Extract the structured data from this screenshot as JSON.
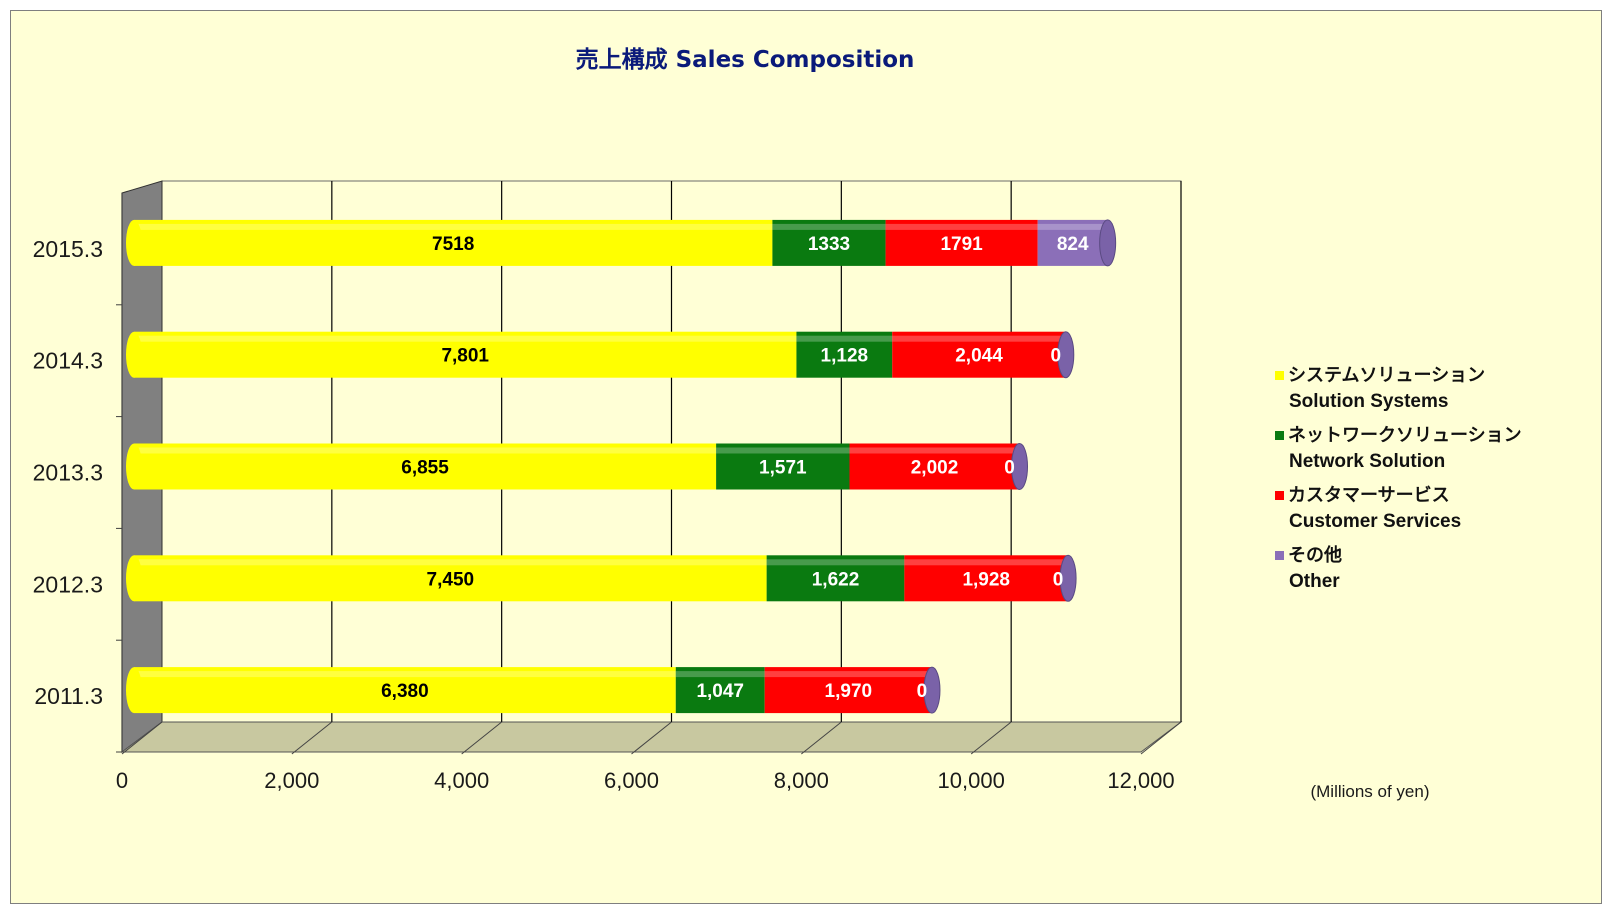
{
  "chart_data": {
    "type": "bar",
    "orientation": "horizontal",
    "stacked": true,
    "title": "売上構成  Sales Composition",
    "unit_note": "(Millions of yen)",
    "xlim": [
      0,
      12000
    ],
    "x_ticks": [
      "0",
      "2,000",
      "4,000",
      "6,000",
      "8,000",
      "10,000",
      "12,000"
    ],
    "x_tick_values": [
      0,
      2000,
      4000,
      6000,
      8000,
      10000,
      12000
    ],
    "grid": true,
    "legend_position": "right",
    "categories": [
      "2011.3",
      "2012.3",
      "2013.3",
      "2014.3",
      "2015.3"
    ],
    "series": [
      {
        "name": "システムソリューション",
        "name_en": "Solution Systems",
        "color": "#ffff00",
        "text_color": "#000000",
        "values": [
          6380,
          7450,
          6855,
          7801,
          7518
        ],
        "labels": [
          "6,380",
          "7,450",
          "6,855",
          "7,801",
          "7518"
        ]
      },
      {
        "name": "ネットワークソリューション",
        "name_en": "Network Solution",
        "color": "#0a7a10",
        "text_color": "#ffffff",
        "values": [
          1047,
          1622,
          1571,
          1128,
          1333
        ],
        "labels": [
          "1,047",
          "1,622",
          "1,571",
          "1,128",
          "1333"
        ]
      },
      {
        "name": "カスタマーサービス",
        "name_en": "Customer Services",
        "color": "#ff0000",
        "text_color": "#ffffff",
        "values": [
          1970,
          1928,
          2002,
          2044,
          1791
        ],
        "labels": [
          "1,970",
          "1,928",
          "2,002",
          "2,044",
          "1791"
        ]
      },
      {
        "name": "その他",
        "name_en": "Other",
        "color": "#8b6fb8",
        "text_color": "#ffffff",
        "values": [
          0,
          0,
          0,
          0,
          824
        ],
        "labels": [
          "0",
          "0",
          "0",
          "0",
          "824"
        ]
      }
    ]
  }
}
